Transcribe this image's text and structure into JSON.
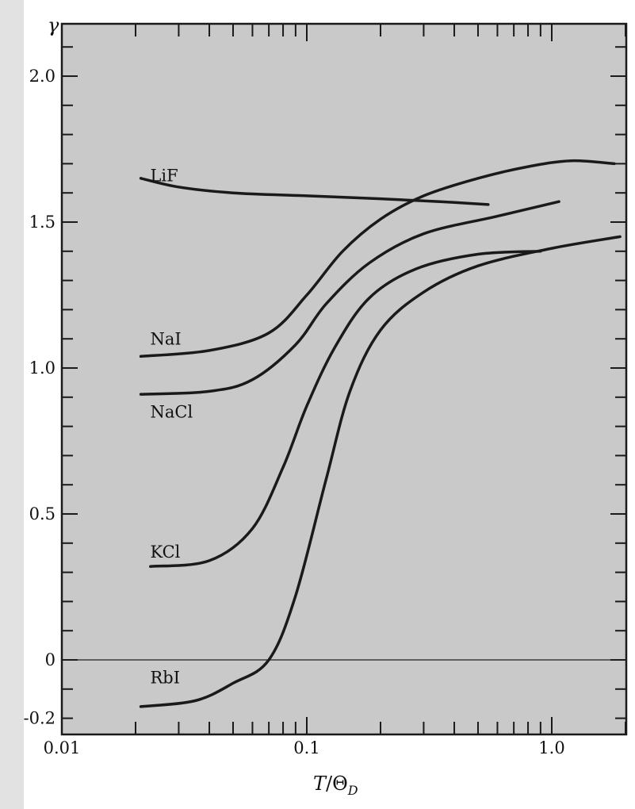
{
  "chart_data": {
    "type": "line",
    "x_scale": "log",
    "xlim": [
      0.01,
      2.0
    ],
    "ylim": [
      -0.22,
      2.2
    ],
    "ylabel": "γ",
    "xlabel": "T/Θ_D",
    "xlabel_parts": {
      "T": "T",
      "slash": "/",
      "theta": "Θ",
      "sub": "D"
    },
    "x_tick_labels": [
      {
        "value": 0.01,
        "label": "0.01"
      },
      {
        "value": 0.1,
        "label": "0.1"
      },
      {
        "value": 1.0,
        "label": "1.0"
      }
    ],
    "y_tick_labels": [
      {
        "value": 2.0,
        "label": "2.0"
      },
      {
        "value": 1.5,
        "label": "1.5"
      },
      {
        "value": 1.0,
        "label": "1.0"
      },
      {
        "value": 0.5,
        "label": "0.5"
      },
      {
        "value": 0.0,
        "label": "0"
      },
      {
        "value": -0.2,
        "label": "-0.2"
      }
    ],
    "reference_line_y": 0,
    "grid": false,
    "series": [
      {
        "name": "LiF",
        "label_at": [
          0.024,
          1.64
        ],
        "points": [
          [
            0.021,
            1.65
          ],
          [
            0.03,
            1.62
          ],
          [
            0.05,
            1.6
          ],
          [
            0.1,
            1.59
          ],
          [
            0.2,
            1.58
          ],
          [
            0.35,
            1.57
          ],
          [
            0.55,
            1.56
          ]
        ]
      },
      {
        "name": "NaI",
        "label_at": [
          0.024,
          1.08
        ],
        "points": [
          [
            0.021,
            1.04
          ],
          [
            0.04,
            1.06
          ],
          [
            0.07,
            1.12
          ],
          [
            0.1,
            1.25
          ],
          [
            0.14,
            1.4
          ],
          [
            0.2,
            1.51
          ],
          [
            0.3,
            1.59
          ],
          [
            0.5,
            1.65
          ],
          [
            0.8,
            1.69
          ],
          [
            1.2,
            1.71
          ],
          [
            1.8,
            1.7
          ]
        ]
      },
      {
        "name": "NaCl",
        "label_at": [
          0.024,
          0.83
        ],
        "points": [
          [
            0.021,
            0.91
          ],
          [
            0.04,
            0.92
          ],
          [
            0.06,
            0.96
          ],
          [
            0.09,
            1.08
          ],
          [
            0.12,
            1.22
          ],
          [
            0.18,
            1.36
          ],
          [
            0.3,
            1.46
          ],
          [
            0.6,
            1.52
          ],
          [
            1.07,
            1.57
          ]
        ]
      },
      {
        "name": "KCl",
        "label_at": [
          0.024,
          0.35
        ],
        "points": [
          [
            0.023,
            0.32
          ],
          [
            0.04,
            0.34
          ],
          [
            0.06,
            0.45
          ],
          [
            0.08,
            0.66
          ],
          [
            0.1,
            0.87
          ],
          [
            0.13,
            1.07
          ],
          [
            0.18,
            1.24
          ],
          [
            0.28,
            1.34
          ],
          [
            0.5,
            1.39
          ],
          [
            0.9,
            1.4
          ]
        ]
      },
      {
        "name": "RbI",
        "label_at": [
          0.024,
          -0.08
        ],
        "points": [
          [
            0.021,
            -0.16
          ],
          [
            0.035,
            -0.14
          ],
          [
            0.05,
            -0.08
          ],
          [
            0.07,
            0.0
          ],
          [
            0.09,
            0.22
          ],
          [
            0.12,
            0.62
          ],
          [
            0.15,
            0.92
          ],
          [
            0.2,
            1.13
          ],
          [
            0.3,
            1.26
          ],
          [
            0.5,
            1.35
          ],
          [
            1.0,
            1.41
          ],
          [
            1.9,
            1.45
          ]
        ]
      }
    ]
  }
}
